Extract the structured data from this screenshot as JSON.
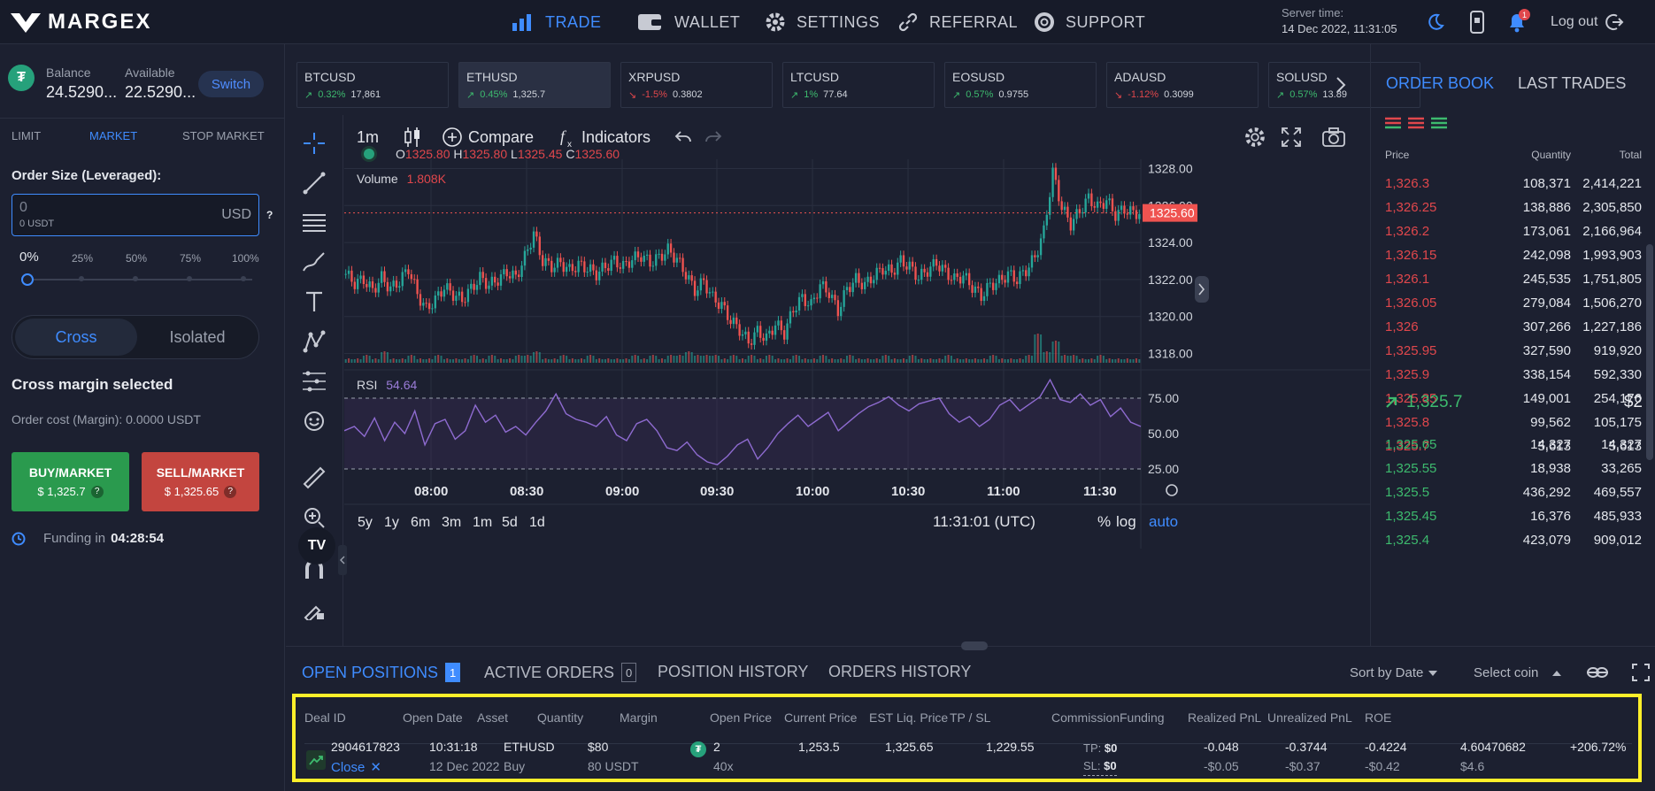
{
  "brand": "MARGEX",
  "nav": [
    {
      "label": "TRADE",
      "icon": "bar-chart-icon",
      "active": true
    },
    {
      "label": "WALLET",
      "icon": "wallet-icon",
      "active": false
    },
    {
      "label": "SETTINGS",
      "icon": "gear-icon",
      "active": false
    },
    {
      "label": "REFERRAL",
      "icon": "link-icon",
      "active": false
    },
    {
      "label": "SUPPORT",
      "icon": "lifebuoy-icon",
      "active": false
    }
  ],
  "server": {
    "label": "Server time:",
    "time": "14 Dec 2022, 11:31:05"
  },
  "notifications_count": "1",
  "logout_label": "Log out",
  "account": {
    "balance_label": "Balance",
    "balance_value": "24.5290...",
    "available_label": "Available",
    "available_value": "22.5290...",
    "switch_label": "Switch"
  },
  "order_tabs": [
    "LIMIT",
    "MARKET",
    "STOP MARKET"
  ],
  "order_form": {
    "size_label": "Order Size (Leveraged):",
    "size_value": "0",
    "size_sub": "0 USDT",
    "currency": "USD",
    "help": "?",
    "slider_value": "0%",
    "slider_marks": [
      "25%",
      "50%",
      "75%",
      "100%"
    ],
    "slider_fraction": 0,
    "cross_label": "Cross",
    "isolated_label": "Isolated",
    "mode_text": "Cross margin selected",
    "cost_text": "Order cost (Margin): 0.0000 USDT",
    "buy_label": "BUY/MARKET",
    "buy_price": "$ 1,325.7",
    "sell_label": "SELL/MARKET",
    "sell_price": "$ 1,325.65",
    "funding_label": "Funding in",
    "funding_time": "04:28:54"
  },
  "tickers": [
    {
      "symbol": "BTCUSD",
      "change": "0.32%",
      "price": "17,861",
      "dir": "up"
    },
    {
      "symbol": "ETHUSD",
      "change": "0.45%",
      "price": "1,325.7",
      "dir": "up"
    },
    {
      "symbol": "XRPUSD",
      "change": "-1.5%",
      "price": "0.3802",
      "dir": "dn"
    },
    {
      "symbol": "LTCUSD",
      "change": "1%",
      "price": "77.64",
      "dir": "up"
    },
    {
      "symbol": "EOSUSD",
      "change": "0.57%",
      "price": "0.9755",
      "dir": "up"
    },
    {
      "symbol": "ADAUSD",
      "change": "-1.12%",
      "price": "0.3099",
      "dir": "dn"
    },
    {
      "symbol": "SOLUSD",
      "change": "0.57%",
      "price": "13.89",
      "dir": "up"
    }
  ],
  "chart_toolbar": {
    "interval": "1m",
    "compare": "Compare",
    "indicators": "Indicators"
  },
  "ohlc": {
    "o_label": "O",
    "o": "1325.80",
    "h_label": "H",
    "h": "1325.80",
    "l_label": "L",
    "l": "1325.45",
    "c_label": "C",
    "c": "1325.60"
  },
  "volume": {
    "label": "Volume",
    "value": "1.808K"
  },
  "rsi": {
    "label": "RSI",
    "value": "54.64"
  },
  "price_scale": [
    "1328.00",
    "1326.00",
    "1324.00",
    "1322.00",
    "1320.00",
    "1318.00"
  ],
  "last_price_tag": "1325.60",
  "rsi_scale": [
    "75.00",
    "50.00",
    "25.00"
  ],
  "time_axis": [
    "08:00",
    "08:30",
    "09:00",
    "09:30",
    "10:00",
    "10:30",
    "11:00",
    "11:30"
  ],
  "ranges": [
    "5y",
    "1y",
    "6m",
    "3m",
    "1m",
    "5d",
    "1d"
  ],
  "clock": "11:31:01 (UTC)",
  "scale_opts": [
    "%",
    "log",
    "auto"
  ],
  "chart_data": {
    "type": "line",
    "title": "",
    "x_range": [
      "07:45",
      "11:35"
    ],
    "ylim": [
      1317.5,
      1328.5
    ],
    "price_path": [
      1322.3,
      1321.8,
      1322.0,
      1321.4,
      1322.1,
      1321.5,
      1321.9,
      1322.6,
      1321.2,
      1320.4,
      1320.9,
      1321.6,
      1321.2,
      1320.9,
      1321.5,
      1322.1,
      1321.7,
      1322.0,
      1322.4,
      1322.1,
      1323.2,
      1324.5,
      1323.0,
      1322.7,
      1322.9,
      1322.5,
      1322.8,
      1322.6,
      1322.3,
      1322.7,
      1323.0,
      1322.7,
      1323.1,
      1323.3,
      1322.9,
      1323.2,
      1323.6,
      1323.1,
      1322.3,
      1321.4,
      1321.9,
      1321.0,
      1320.6,
      1319.8,
      1319.3,
      1318.6,
      1319.2,
      1318.8,
      1319.6,
      1319.1,
      1320.4,
      1321.0,
      1320.6,
      1321.7,
      1321.3,
      1320.3,
      1321.5,
      1322.0,
      1321.7,
      1322.2,
      1322.6,
      1322.4,
      1323.0,
      1322.7,
      1322.1,
      1322.5,
      1322.9,
      1322.4,
      1322.0,
      1322.2,
      1321.6,
      1321.1,
      1321.7,
      1321.9,
      1322.3,
      1322.0,
      1322.5,
      1323.2,
      1324.6,
      1327.8,
      1325.9,
      1325.0,
      1325.7,
      1326.4,
      1325.9,
      1326.3,
      1325.5,
      1325.8,
      1325.6
    ],
    "rsi_path": [
      52,
      55,
      48,
      61,
      45,
      58,
      50,
      66,
      42,
      57,
      60,
      46,
      52,
      70,
      58,
      63,
      51,
      55,
      49,
      58,
      66,
      78,
      64,
      60,
      58,
      55,
      62,
      49,
      45,
      57,
      60,
      52,
      40,
      38,
      44,
      35,
      30,
      28,
      34,
      42,
      46,
      32,
      40,
      50,
      57,
      63,
      55,
      60,
      65,
      52,
      58,
      64,
      69,
      72,
      76,
      70,
      66,
      71,
      73,
      75,
      64,
      58,
      62,
      55,
      60,
      70,
      74,
      66,
      71,
      76,
      88,
      74,
      72,
      78,
      70,
      74,
      62,
      68,
      58,
      55
    ],
    "rsi_range": [
      0,
      100
    ],
    "volume_path": [
      1,
      1,
      2,
      1,
      3,
      1,
      1,
      2,
      1,
      1,
      2,
      1,
      1,
      1,
      2,
      1,
      2,
      1,
      1,
      2,
      2,
      3,
      1,
      1,
      2,
      1,
      1,
      2,
      1,
      1,
      1,
      1,
      2,
      1,
      2,
      1,
      2,
      2,
      3,
      2,
      2,
      2,
      1,
      2,
      1,
      2,
      1,
      2,
      1,
      1,
      2,
      1,
      1,
      2,
      1,
      1,
      2,
      1,
      1,
      1,
      2,
      1,
      1,
      2,
      1,
      1,
      1,
      2,
      1,
      1,
      1,
      1,
      2,
      1,
      1,
      1,
      2,
      8,
      3,
      6,
      2,
      2,
      1,
      1,
      2,
      1,
      1,
      1,
      1
    ]
  },
  "orderbook": {
    "tabs": [
      "ORDER BOOK",
      "LAST TRADES"
    ],
    "headers": [
      "Price",
      "Quantity",
      "Total"
    ],
    "asks": [
      [
        "1,326.3",
        "108,371",
        "2,414,221"
      ],
      [
        "1,326.25",
        "138,886",
        "2,305,850"
      ],
      [
        "1,326.2",
        "173,061",
        "2,166,964"
      ],
      [
        "1,326.15",
        "242,098",
        "1,993,903"
      ],
      [
        "1,326.1",
        "245,535",
        "1,751,805"
      ],
      [
        "1,326.05",
        "279,084",
        "1,506,270"
      ],
      [
        "1,326",
        "307,266",
        "1,227,186"
      ],
      [
        "1,325.95",
        "327,590",
        "919,920"
      ],
      [
        "1,325.9",
        "338,154",
        "592,330"
      ],
      [
        "1,325.85",
        "149,001",
        "254,176"
      ],
      [
        "1,325.8",
        "99,562",
        "105,175"
      ],
      [
        "1,325.7",
        "5,613",
        "5,613"
      ]
    ],
    "last_price": "1,325.7",
    "spread": "$2",
    "bids": [
      [
        "1,325.65",
        "14,327",
        "14,327"
      ],
      [
        "1,325.55",
        "18,938",
        "33,265"
      ],
      [
        "1,325.5",
        "436,292",
        "469,557"
      ],
      [
        "1,325.45",
        "16,376",
        "485,933"
      ],
      [
        "1,325.4",
        "423,079",
        "909,012"
      ]
    ]
  },
  "bottom_tabs": [
    {
      "label": "OPEN POSITIONS",
      "badge": "1"
    },
    {
      "label": "ACTIVE ORDERS",
      "badge": "0"
    },
    {
      "label": "POSITION HISTORY",
      "badge": ""
    },
    {
      "label": "ORDERS HISTORY",
      "badge": ""
    }
  ],
  "sort_by": "Sort by Date",
  "select_coin": "Select coin",
  "positions": {
    "headers": [
      "Deal ID",
      "Open Date",
      "Asset",
      "Quantity",
      "Margin",
      "Open Price",
      "Current Price",
      "EST Liq. Price",
      "TP / SL",
      "Commission",
      "Funding",
      "Realized PnL",
      "Unrealized PnL",
      "ROE"
    ],
    "row": {
      "deal_id": "2904617823",
      "close": "Close",
      "date": "10:31:18",
      "date2": "12 Dec 2022",
      "asset": "ETHUSD",
      "side": "Buy",
      "qty": "$80",
      "qty2": "80 USDT",
      "margin": "2",
      "leverage": "40x",
      "open_price": "1,253.5",
      "current_price": "1,325.65",
      "liq_price": "1,229.55",
      "tp_label": "TP:",
      "tp": "$0",
      "sl_label": "SL:",
      "sl": "$0",
      "commission": "-0.048",
      "commission2": "-$0.05",
      "funding": "-0.3744",
      "funding2": "-$0.37",
      "realized": "-0.4224",
      "realized2": "-$0.42",
      "unrealized": "4.60470682",
      "unrealized2": "$4.6",
      "roe": "+206.72%"
    }
  }
}
